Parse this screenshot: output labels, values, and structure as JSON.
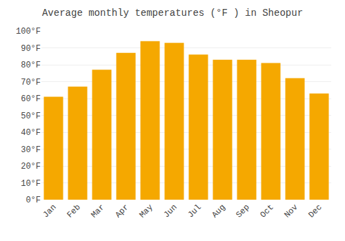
{
  "chart_data": {
    "type": "bar",
    "title": "Average monthly temperatures (°F ) in Sheopur",
    "categories": [
      "Jan",
      "Feb",
      "Mar",
      "Apr",
      "May",
      "Jun",
      "Jul",
      "Aug",
      "Sep",
      "Oct",
      "Nov",
      "Dec"
    ],
    "values": [
      61,
      67,
      77,
      87,
      94,
      93,
      86,
      83,
      83,
      81,
      72,
      63
    ],
    "color": "#F5A800",
    "ylim": [
      0,
      100
    ],
    "yticks": [
      {
        "value": 0,
        "label": "0°F"
      },
      {
        "value": 10,
        "label": "10°F"
      },
      {
        "value": 20,
        "label": "20°F"
      },
      {
        "value": 30,
        "label": "30°F"
      },
      {
        "value": 40,
        "label": "40°F"
      },
      {
        "value": 50,
        "label": "50°F"
      },
      {
        "value": 60,
        "label": "60°F"
      },
      {
        "value": 70,
        "label": "70°F"
      },
      {
        "value": 80,
        "label": "80°F"
      },
      {
        "value": 90,
        "label": "90°F"
      },
      {
        "value": 100,
        "label": "100°F"
      }
    ],
    "grid": true
  }
}
